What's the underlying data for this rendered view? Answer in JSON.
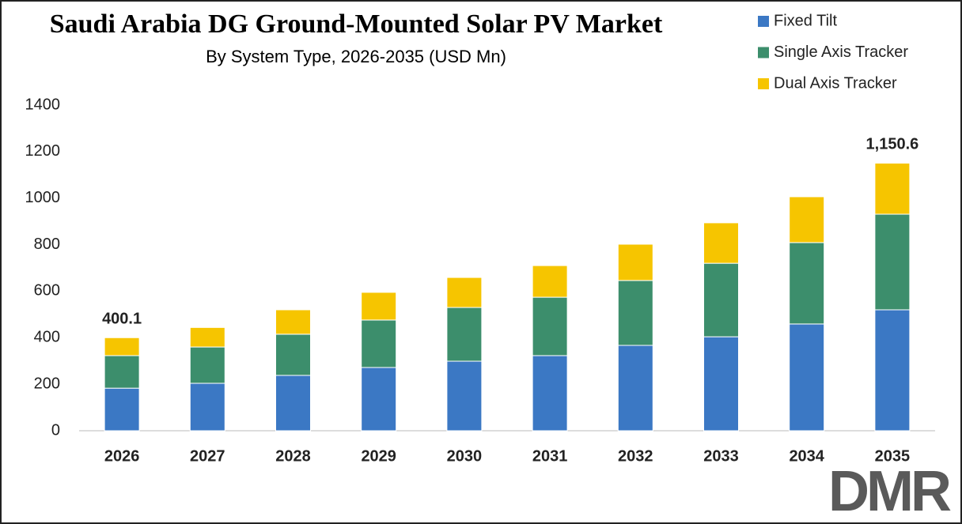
{
  "chart_data": {
    "type": "stacked-bar",
    "title": "Saudi Arabia DG Ground-Mounted Solar PV Market",
    "subtitle": "By System Type, 2026-2035 (USD Mn)",
    "categories": [
      "2026",
      "2027",
      "2028",
      "2029",
      "2030",
      "2031",
      "2032",
      "2033",
      "2034",
      "2035"
    ],
    "series": [
      {
        "name": "Fixed Tilt",
        "color": "#3b78c4",
        "values": [
          183,
          204,
          238,
          272,
          299,
          323,
          367,
          404,
          459,
          520
        ]
      },
      {
        "name": "Single Axis Tracker",
        "color": "#3c8e6c",
        "values": [
          140,
          156,
          177,
          204,
          231,
          251,
          279,
          316,
          350,
          411
        ]
      },
      {
        "name": "Dual Axis Tracker",
        "color": "#f6c500",
        "values": [
          77.1,
          84,
          105,
          119,
          129,
          136,
          156,
          174,
          197,
          219.6
        ]
      }
    ],
    "annotations": [
      {
        "category": "2026",
        "value": 400.1,
        "label": "400.1"
      },
      {
        "category": "2035",
        "value": 1150.6,
        "label": "1,150.6"
      }
    ],
    "ylim": [
      0,
      1400
    ],
    "yticks": [
      0,
      200,
      400,
      600,
      800,
      1000,
      1200,
      1400
    ],
    "grid": false,
    "legend": "top-right"
  },
  "logo": "DMR"
}
